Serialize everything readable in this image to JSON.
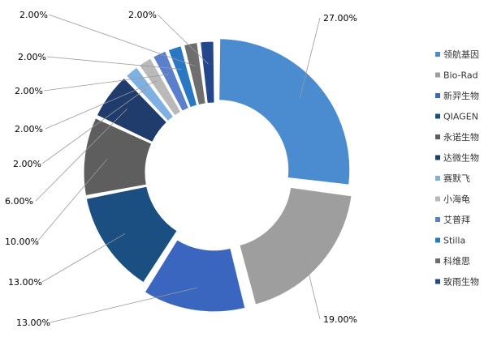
{
  "chart_data": {
    "type": "pie",
    "style": "donut",
    "title": "",
    "legend_position": "right",
    "slices": [
      {
        "label": "领航基因",
        "value": 27.0,
        "display": "27.00%",
        "color": "#4a8ccf"
      },
      {
        "label": "Bio-Rad",
        "value": 19.0,
        "display": "19.00%",
        "color": "#9e9e9e"
      },
      {
        "label": "新羿生物",
        "value": 13.0,
        "display": "13.00%",
        "color": "#3a66c0"
      },
      {
        "label": "QIAGEN",
        "value": 13.0,
        "display": "13.00%",
        "color": "#1b4f82"
      },
      {
        "label": "永诺生物",
        "value": 10.0,
        "display": "10.00%",
        "color": "#5e5e5e"
      },
      {
        "label": "达微生物",
        "value": 6.0,
        "display": "6.00%",
        "color": "#203c6d"
      },
      {
        "label": "赛默飞",
        "value": 2.0,
        "display": "2.00%",
        "color": "#7eb0e2"
      },
      {
        "label": "小海龟",
        "value": 2.0,
        "display": "2.00%",
        "color": "#b9b9b9"
      },
      {
        "label": "艾普拜",
        "value": 2.0,
        "display": "2.00%",
        "color": "#5a80cb"
      },
      {
        "label": "Stilla",
        "value": 2.0,
        "display": "2.00%",
        "color": "#2a78c2"
      },
      {
        "label": "科维思",
        "value": 2.0,
        "display": "2.00%",
        "color": "#6e6e6e"
      },
      {
        "label": "致雨生物",
        "value": 2.0,
        "display": "2.00%",
        "color": "#23478a"
      }
    ]
  }
}
